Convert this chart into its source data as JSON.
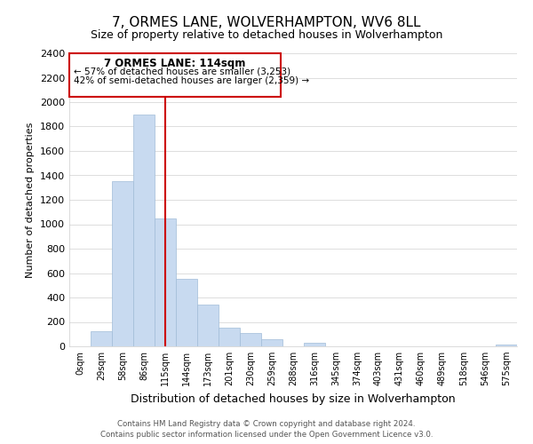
{
  "title": "7, ORMES LANE, WOLVERHAMPTON, WV6 8LL",
  "subtitle": "Size of property relative to detached houses in Wolverhampton",
  "xlabel": "Distribution of detached houses by size in Wolverhampton",
  "ylabel": "Number of detached properties",
  "bar_color": "#c8daf0",
  "bar_edge_color": "#a0bcd8",
  "categories": [
    "0sqm",
    "29sqm",
    "58sqm",
    "86sqm",
    "115sqm",
    "144sqm",
    "173sqm",
    "201sqm",
    "230sqm",
    "259sqm",
    "288sqm",
    "316sqm",
    "345sqm",
    "374sqm",
    "403sqm",
    "431sqm",
    "460sqm",
    "489sqm",
    "518sqm",
    "546sqm",
    "575sqm"
  ],
  "values": [
    0,
    125,
    1350,
    1900,
    1050,
    550,
    340,
    155,
    110,
    60,
    0,
    30,
    0,
    0,
    0,
    0,
    0,
    0,
    0,
    0,
    15
  ],
  "ylim": [
    0,
    2400
  ],
  "yticks": [
    0,
    200,
    400,
    600,
    800,
    1000,
    1200,
    1400,
    1600,
    1800,
    2000,
    2200,
    2400
  ],
  "property_line_x": 4,
  "annotation_title": "7 ORMES LANE: 114sqm",
  "annotation_line1": "← 57% of detached houses are smaller (3,253)",
  "annotation_line2": "42% of semi-detached houses are larger (2,359) →",
  "footer1": "Contains HM Land Registry data © Crown copyright and database right 2024.",
  "footer2": "Contains public sector information licensed under the Open Government Licence v3.0.",
  "background_color": "#ffffff",
  "grid_color": "#d0d0d0",
  "title_fontsize": 11,
  "subtitle_fontsize": 9,
  "annotation_line_color": "#cc0000",
  "bar_width": 1.0
}
